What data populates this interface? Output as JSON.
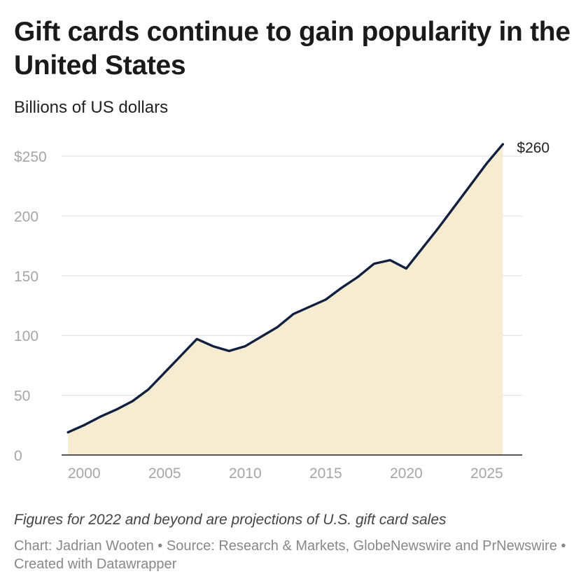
{
  "title": "Gift cards continue to gain popularity in the United States",
  "subtitle": "Billions of US dollars",
  "note": "Figures for 2022 and beyond are projections of U.S. gift card sales",
  "credit": "Chart: Jadrian Wooten • Source: Research & Markets, GlobeNewswire and PrNewswire • Created with Datawrapper",
  "colors": {
    "line": "#12203f",
    "area": "#f6ecd1",
    "grid": "#e2e2e2",
    "tick": "#a6a6a6",
    "axis": "#222222"
  },
  "chart_data": {
    "type": "area",
    "x": [
      1999,
      2000,
      2001,
      2002,
      2003,
      2004,
      2005,
      2006,
      2007,
      2008,
      2009,
      2010,
      2011,
      2012,
      2013,
      2014,
      2015,
      2016,
      2017,
      2018,
      2019,
      2020,
      2021,
      2022,
      2023,
      2024,
      2025,
      2026
    ],
    "series": [
      {
        "values": [
          19,
          25,
          32,
          38,
          45,
          55,
          69,
          83,
          97,
          91,
          87,
          91,
          99,
          107,
          118,
          124,
          130,
          140,
          149,
          160,
          163,
          156,
          173,
          190,
          208,
          226,
          244,
          260
        ]
      }
    ],
    "xlim": [
      1998.6,
      2027.2
    ],
    "ylim": [
      0,
      260
    ],
    "x_ticks": [
      2000,
      2005,
      2010,
      2015,
      2020,
      2025
    ],
    "y_ticks": [
      0,
      50,
      100,
      150,
      200,
      250
    ],
    "y_tick_labels": [
      "0",
      "50",
      "100",
      "150",
      "200",
      "$250"
    ],
    "end_label": "$260",
    "grid": true
  }
}
